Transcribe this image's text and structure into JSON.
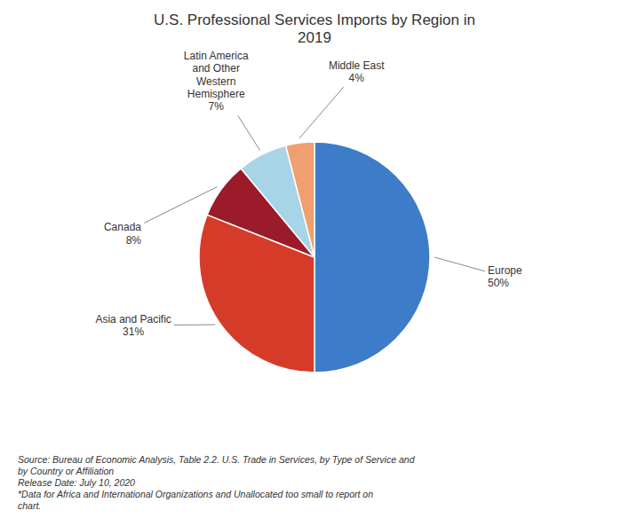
{
  "chart_data": {
    "type": "pie",
    "title": "U.S. Professional Services Imports by Region in\n2019",
    "categories": [
      "Europe",
      "Asia and Pacific",
      "Canada",
      "Latin America\nand Other\nWestern\nHemisphere",
      "Middle East"
    ],
    "values": [
      50,
      31,
      8,
      7,
      4
    ],
    "value_labels": [
      "50%",
      "31%",
      "8%",
      "7%",
      "4%"
    ],
    "data_labels": true,
    "colors": [
      "#3D7CC9",
      "#D63B2A",
      "#9B1B2A",
      "#A8D4E8",
      "#F0A070"
    ],
    "annotations": [
      "Source: Bureau of Economic Analysis, Table 2.2. U.S. Trade in Services, by Type of Service and\nby Country or Affiliation\nRelease Date: July 10, 2020\n*Data for Africa and International Organizations and Unallocated too small to report on\nchart."
    ]
  }
}
